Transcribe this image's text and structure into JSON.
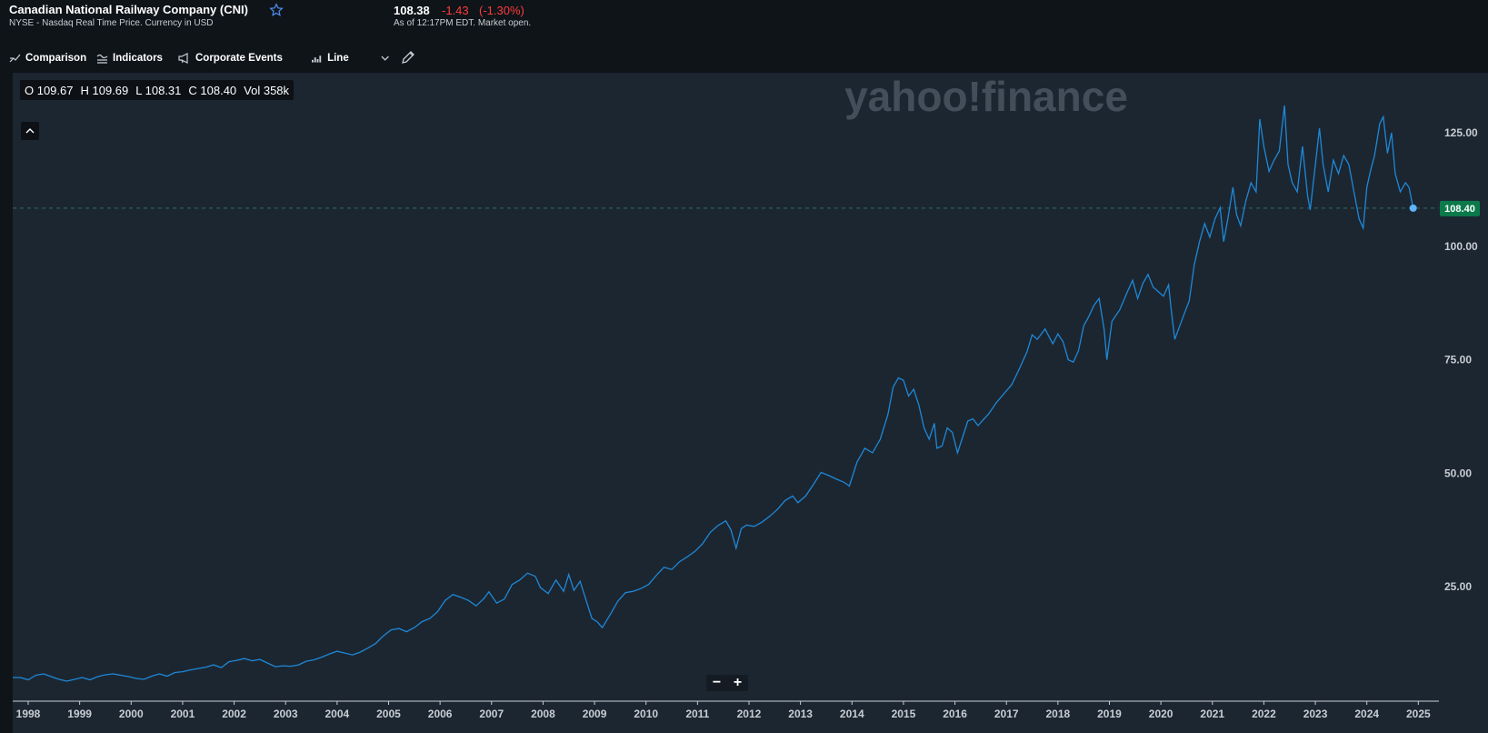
{
  "header": {
    "title": "Canadian National Railway Company (CNI)",
    "subtitle": "NYSE - Nasdaq Real Time Price. Currency in USD",
    "price": "108.38",
    "change": "-1.43",
    "change_pct": "(-1.30%)",
    "as_of": "As of 12:17PM EDT. Market open."
  },
  "toolbar": {
    "comparison": "Comparison",
    "indicators": "Indicators",
    "corporate_events": "Corporate Events",
    "chart_type": "Line"
  },
  "ohlc": {
    "open": "O 109.67",
    "high": "H 109.69",
    "low": "L 108.31",
    "close": "C 108.40",
    "volume": "Vol 358k"
  },
  "watermark": "yahoo!finance",
  "zoom": {
    "minus": "−",
    "plus": "+"
  },
  "colors": {
    "background": "#1c2631",
    "header_bg": "#0f1419",
    "line": "#1e88d6",
    "last_price_badge": "#0b7a4b",
    "negative": "#ff3b3b"
  },
  "chart_data": {
    "type": "line",
    "title": "",
    "xlabel": "",
    "ylabel": "",
    "x_ticks": [
      "1998",
      "1999",
      "2000",
      "2001",
      "2002",
      "2003",
      "2004",
      "2005",
      "2006",
      "2007",
      "2008",
      "2009",
      "2010",
      "2011",
      "2012",
      "2013",
      "2014",
      "2015",
      "2016",
      "2017",
      "2018",
      "2019",
      "2020",
      "2021",
      "2022",
      "2023",
      "2024",
      "2025"
    ],
    "y_ticks": [
      "25.00",
      "50.00",
      "75.00",
      "100.00",
      "125.00"
    ],
    "ylim": [
      0,
      135
    ],
    "xlim": [
      1997.7,
      2025.4
    ],
    "last_price_label": "108.40",
    "last_price": 108.4,
    "grid": false,
    "legend": "none",
    "series": [
      {
        "points": [
          [
            1997.7,
            5
          ],
          [
            1997.85,
            5
          ],
          [
            1998.0,
            4.5
          ],
          [
            1998.15,
            5.5
          ],
          [
            1998.3,
            5.8
          ],
          [
            1998.45,
            5.2
          ],
          [
            1998.6,
            4.6
          ],
          [
            1998.75,
            4.2
          ],
          [
            1998.9,
            4.6
          ],
          [
            1999.05,
            5
          ],
          [
            1999.2,
            4.5
          ],
          [
            1999.35,
            5.2
          ],
          [
            1999.5,
            5.6
          ],
          [
            1999.65,
            5.8
          ],
          [
            1999.8,
            5.5
          ],
          [
            1999.95,
            5.2
          ],
          [
            2000.1,
            4.8
          ],
          [
            2000.25,
            4.6
          ],
          [
            2000.4,
            5.3
          ],
          [
            2000.55,
            5.8
          ],
          [
            2000.7,
            5.3
          ],
          [
            2000.85,
            6.1
          ],
          [
            2001.0,
            6.3
          ],
          [
            2001.15,
            6.7
          ],
          [
            2001.3,
            7
          ],
          [
            2001.45,
            7.3
          ],
          [
            2001.6,
            7.8
          ],
          [
            2001.75,
            7.2
          ],
          [
            2001.9,
            8.5
          ],
          [
            2002.05,
            8.8
          ],
          [
            2002.2,
            9.2
          ],
          [
            2002.35,
            8.7
          ],
          [
            2002.5,
            9
          ],
          [
            2002.65,
            8.2
          ],
          [
            2002.8,
            7.4
          ],
          [
            2002.95,
            7.6
          ],
          [
            2003.1,
            7.5
          ],
          [
            2003.25,
            7.8
          ],
          [
            2003.4,
            8.6
          ],
          [
            2003.55,
            8.9
          ],
          [
            2003.7,
            9.5
          ],
          [
            2003.85,
            10.2
          ],
          [
            2004.0,
            10.8
          ],
          [
            2004.15,
            10.4
          ],
          [
            2004.3,
            10
          ],
          [
            2004.45,
            10.6
          ],
          [
            2004.6,
            11.5
          ],
          [
            2004.75,
            12.5
          ],
          [
            2004.9,
            14.2
          ],
          [
            2005.05,
            15.5
          ],
          [
            2005.2,
            15.8
          ],
          [
            2005.35,
            15.1
          ],
          [
            2005.5,
            16
          ],
          [
            2005.65,
            17.3
          ],
          [
            2005.8,
            18
          ],
          [
            2005.95,
            19.5
          ],
          [
            2006.1,
            22
          ],
          [
            2006.25,
            23.3
          ],
          [
            2006.4,
            22.7
          ],
          [
            2006.55,
            22
          ],
          [
            2006.7,
            20.8
          ],
          [
            2006.85,
            22.4
          ],
          [
            2006.95,
            23.9
          ],
          [
            2007.1,
            21.4
          ],
          [
            2007.25,
            22.3
          ],
          [
            2007.4,
            25.5
          ],
          [
            2007.55,
            26.5
          ],
          [
            2007.7,
            28
          ],
          [
            2007.85,
            27.3
          ],
          [
            2007.95,
            24.8
          ],
          [
            2008.1,
            23.5
          ],
          [
            2008.25,
            26.5
          ],
          [
            2008.4,
            24
          ],
          [
            2008.5,
            27.7
          ],
          [
            2008.6,
            24.2
          ],
          [
            2008.72,
            26.2
          ],
          [
            2008.85,
            21.5
          ],
          [
            2008.95,
            18
          ],
          [
            2009.05,
            17.3
          ],
          [
            2009.15,
            16
          ],
          [
            2009.3,
            18.8
          ],
          [
            2009.45,
            21.8
          ],
          [
            2009.6,
            23.7
          ],
          [
            2009.75,
            24
          ],
          [
            2009.9,
            24.6
          ],
          [
            2010.05,
            25.5
          ],
          [
            2010.2,
            27.5
          ],
          [
            2010.35,
            29.3
          ],
          [
            2010.5,
            28.8
          ],
          [
            2010.65,
            30.5
          ],
          [
            2010.8,
            31.6
          ],
          [
            2010.95,
            32.8
          ],
          [
            2011.1,
            34.5
          ],
          [
            2011.25,
            37
          ],
          [
            2011.4,
            38.5
          ],
          [
            2011.55,
            39.5
          ],
          [
            2011.65,
            37.5
          ],
          [
            2011.75,
            33.5
          ],
          [
            2011.85,
            37.8
          ],
          [
            2011.95,
            38.6
          ],
          [
            2012.1,
            38.3
          ],
          [
            2012.25,
            39.2
          ],
          [
            2012.4,
            40.5
          ],
          [
            2012.55,
            42
          ],
          [
            2012.7,
            44
          ],
          [
            2012.85,
            45
          ],
          [
            2012.95,
            43.5
          ],
          [
            2013.1,
            45
          ],
          [
            2013.25,
            47.5
          ],
          [
            2013.4,
            50.2
          ],
          [
            2013.55,
            49.5
          ],
          [
            2013.7,
            48.7
          ],
          [
            2013.85,
            48
          ],
          [
            2013.95,
            47.2
          ],
          [
            2014.1,
            52.5
          ],
          [
            2014.25,
            55.5
          ],
          [
            2014.4,
            54.5
          ],
          [
            2014.55,
            57.5
          ],
          [
            2014.7,
            63
          ],
          [
            2014.8,
            69
          ],
          [
            2014.9,
            71
          ],
          [
            2015.0,
            70.5
          ],
          [
            2015.1,
            67
          ],
          [
            2015.2,
            68.5
          ],
          [
            2015.3,
            65
          ],
          [
            2015.4,
            60
          ],
          [
            2015.5,
            57.5
          ],
          [
            2015.6,
            61
          ],
          [
            2015.65,
            55.5
          ],
          [
            2015.75,
            56
          ],
          [
            2015.85,
            60
          ],
          [
            2015.95,
            59
          ],
          [
            2016.05,
            54.5
          ],
          [
            2016.15,
            58
          ],
          [
            2016.25,
            61.5
          ],
          [
            2016.35,
            62
          ],
          [
            2016.45,
            60.5
          ],
          [
            2016.55,
            61.8
          ],
          [
            2016.65,
            63
          ],
          [
            2016.8,
            65.5
          ],
          [
            2016.95,
            67.5
          ],
          [
            2017.1,
            69.5
          ],
          [
            2017.25,
            73
          ],
          [
            2017.4,
            76.8
          ],
          [
            2017.5,
            80.5
          ],
          [
            2017.6,
            79.5
          ],
          [
            2017.75,
            81.8
          ],
          [
            2017.9,
            78.5
          ],
          [
            2018.0,
            80.7
          ],
          [
            2018.1,
            79
          ],
          [
            2018.2,
            75
          ],
          [
            2018.3,
            74.5
          ],
          [
            2018.4,
            77
          ],
          [
            2018.5,
            82.5
          ],
          [
            2018.6,
            84.5
          ],
          [
            2018.7,
            87
          ],
          [
            2018.8,
            88.5
          ],
          [
            2018.9,
            81.5
          ],
          [
            2018.95,
            75
          ],
          [
            2019.05,
            83.5
          ],
          [
            2019.2,
            86
          ],
          [
            2019.35,
            90
          ],
          [
            2019.45,
            92.5
          ],
          [
            2019.55,
            88.5
          ],
          [
            2019.65,
            91.8
          ],
          [
            2019.75,
            93.8
          ],
          [
            2019.85,
            91
          ],
          [
            2019.95,
            90
          ],
          [
            2020.05,
            89
          ],
          [
            2020.15,
            91.5
          ],
          [
            2020.2,
            86
          ],
          [
            2020.27,
            79.5
          ],
          [
            2020.35,
            82
          ],
          [
            2020.45,
            85
          ],
          [
            2020.55,
            88
          ],
          [
            2020.65,
            96
          ],
          [
            2020.75,
            101
          ],
          [
            2020.85,
            105
          ],
          [
            2020.95,
            102
          ],
          [
            2021.05,
            106
          ],
          [
            2021.15,
            108.5
          ],
          [
            2021.22,
            101
          ],
          [
            2021.3,
            106
          ],
          [
            2021.4,
            113
          ],
          [
            2021.47,
            107
          ],
          [
            2021.55,
            104.5
          ],
          [
            2021.65,
            110
          ],
          [
            2021.75,
            114
          ],
          [
            2021.85,
            112
          ],
          [
            2021.92,
            128
          ],
          [
            2022.0,
            122
          ],
          [
            2022.1,
            116.5
          ],
          [
            2022.2,
            119
          ],
          [
            2022.3,
            121
          ],
          [
            2022.4,
            131
          ],
          [
            2022.47,
            118
          ],
          [
            2022.55,
            114
          ],
          [
            2022.65,
            112
          ],
          [
            2022.75,
            122
          ],
          [
            2022.85,
            111
          ],
          [
            2022.9,
            108
          ],
          [
            2023.0,
            118
          ],
          [
            2023.08,
            126
          ],
          [
            2023.15,
            118
          ],
          [
            2023.25,
            112
          ],
          [
            2023.35,
            119
          ],
          [
            2023.45,
            116
          ],
          [
            2023.55,
            120
          ],
          [
            2023.65,
            118
          ],
          [
            2023.75,
            112
          ],
          [
            2023.85,
            106
          ],
          [
            2023.93,
            104
          ],
          [
            2024.0,
            113
          ],
          [
            2024.08,
            117
          ],
          [
            2024.15,
            120
          ],
          [
            2024.25,
            127
          ],
          [
            2024.32,
            128.5
          ],
          [
            2024.4,
            120.5
          ],
          [
            2024.48,
            125
          ],
          [
            2024.55,
            116
          ],
          [
            2024.65,
            112
          ],
          [
            2024.75,
            114
          ],
          [
            2024.82,
            113
          ],
          [
            2024.9,
            108.4
          ]
        ]
      }
    ]
  }
}
